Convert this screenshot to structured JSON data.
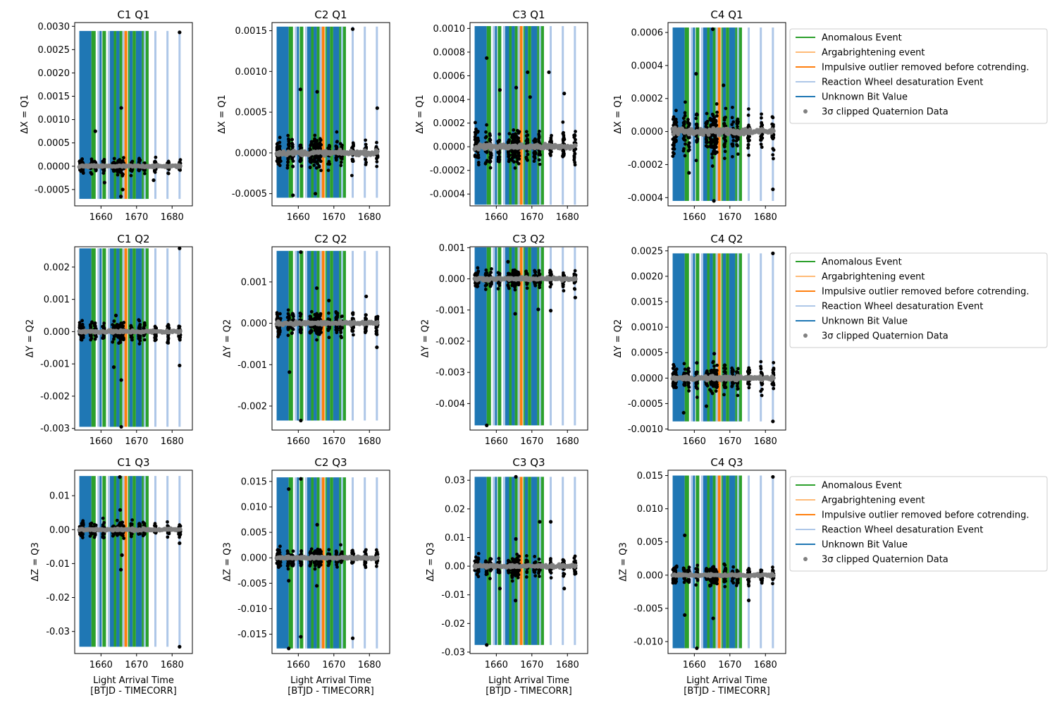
{
  "figure": {
    "xlabel_line1": "Light Arrival Time",
    "xlabel_line2": "[BTJD - TIMECORR]",
    "xticks": [
      1660,
      1670,
      1680
    ],
    "xlim": [
      1652.6,
      1685.7
    ],
    "time_span": [
      1653.9,
      1682.3
    ]
  },
  "legend": {
    "entries": [
      {
        "label": "Anomalous Event",
        "color": "#2ca02c",
        "kind": "line"
      },
      {
        "label": "Argabrightening event",
        "color": "#ffbb78",
        "kind": "line"
      },
      {
        "label": "Impulsive outlier removed before cotrending.",
        "color": "#ff7f0e",
        "kind": "line"
      },
      {
        "label": "Reaction Wheel desaturation Event",
        "color": "#aec7e8",
        "kind": "line"
      },
      {
        "label": "Unknown Bit Value",
        "color": "#1f77b4",
        "kind": "line"
      },
      {
        "label": "3σ clipped Quaternion Data",
        "color": "#808080",
        "kind": "marker"
      }
    ]
  },
  "events": {
    "unknown_bit_value": {
      "color": "#1f77b4",
      "spans": [
        [
          1653.9,
          1657.3
        ],
        [
          1659.6,
          1660.2
        ],
        [
          1662.5,
          1663.6
        ],
        [
          1664.3,
          1665.2
        ],
        [
          1668.0,
          1668.9
        ],
        [
          1669.8,
          1671.5
        ]
      ]
    },
    "anomalous_event": {
      "color": "#2ca02c",
      "spans": [
        [
          1657.3,
          1658.5
        ],
        [
          1660.4,
          1661.4
        ],
        [
          1663.6,
          1664.3
        ],
        [
          1665.2,
          1666.0
        ],
        [
          1667.6,
          1668.0
        ],
        [
          1668.9,
          1669.8
        ],
        [
          1671.5,
          1672.2
        ],
        [
          1672.4,
          1673.4
        ]
      ]
    },
    "reaction_wheel_desaturation": {
      "color": "#aec7e8",
      "times": [
        1659.3,
        1662.2,
        1666.3,
        1675.3,
        1678.7,
        1682.1
      ]
    },
    "reaction_wheel_desaturation_dark": {
      "color": "#9ecae1",
      "times": [
        1672.3
      ]
    },
    "impulsive_outlier": {
      "color": "#ff7f0e",
      "times": [
        1667.0
      ]
    }
  },
  "chart_data": [
    {
      "type": "scatter",
      "title": "C1 Q1",
      "ylabel": "ΔX = Q1",
      "ylim": [
        -0.00085,
        0.00308
      ],
      "yticks": [
        "-0.0005",
        "0.0000",
        "0.0005",
        "0.0010",
        "0.0015",
        "0.0020",
        "0.0025",
        "0.0030"
      ],
      "ytick_values": [
        -0.0005,
        0,
        0.0005,
        0.001,
        0.0015,
        0.002,
        0.0025,
        0.003
      ],
      "event_band": [
        -0.0007,
        0.0029
      ],
      "center": 0.0,
      "spread": 0.00018,
      "outliers": [
        {
          "x": 1658.4,
          "y": 0.00075
        },
        {
          "x": 1665.7,
          "y": 0.00125
        },
        {
          "x": 1665.6,
          "y": -0.00065
        },
        {
          "x": 1682.1,
          "y": 0.00287
        },
        {
          "x": 1666.1,
          "y": -0.0005
        },
        {
          "x": 1674.8,
          "y": -0.0003
        },
        {
          "x": 1661.0,
          "y": -0.00035
        }
      ]
    },
    {
      "type": "scatter",
      "title": "C2 Q1",
      "ylabel": "ΔX = Q1",
      "ylim": [
        -0.00065,
        0.0016
      ],
      "yticks": [
        "-0.0005",
        "0.0000",
        "0.0005",
        "0.0010",
        "0.0015"
      ],
      "ytick_values": [
        -0.0005,
        0,
        0.0005,
        0.001,
        0.0015
      ],
      "event_band": [
        -0.00055,
        0.00155
      ],
      "center": 0.0,
      "spread": 0.00022,
      "outliers": [
        {
          "x": 1660.6,
          "y": 0.00078
        },
        {
          "x": 1665.3,
          "y": 0.00075
        },
        {
          "x": 1675.3,
          "y": 0.00152
        },
        {
          "x": 1658.5,
          "y": -0.00052
        },
        {
          "x": 1682.2,
          "y": 0.00055
        },
        {
          "x": 1664.8,
          "y": -0.0005
        }
      ]
    },
    {
      "type": "scatter",
      "title": "C3 Q1",
      "ylabel": "ΔX = Q1",
      "ylim": [
        -0.0005,
        0.00105
      ],
      "yticks": [
        "-0.0004",
        "-0.0002",
        "0.0000",
        "0.0002",
        "0.0004",
        "0.0006",
        "0.0008",
        "0.0010"
      ],
      "ytick_values": [
        -0.0004,
        -0.0002,
        0,
        0.0002,
        0.0004,
        0.0006,
        0.0008,
        0.001
      ],
      "event_band": [
        -0.00049,
        0.00102
      ],
      "center": 0.0,
      "spread": 0.00018,
      "outliers": [
        {
          "x": 1657.3,
          "y": 0.00075
        },
        {
          "x": 1665.6,
          "y": 0.0005
        },
        {
          "x": 1668.8,
          "y": 0.00063
        },
        {
          "x": 1669.5,
          "y": 0.00042
        },
        {
          "x": 1674.8,
          "y": 0.00063
        },
        {
          "x": 1679.1,
          "y": 0.00045
        },
        {
          "x": 1661.0,
          "y": 0.00048
        }
      ]
    },
    {
      "type": "scatter",
      "title": "C4 Q1",
      "ylabel": "ΔX = Q1",
      "ylim": [
        -0.00045,
        0.00066
      ],
      "yticks": [
        "-0.0004",
        "-0.0002",
        "0.0000",
        "0.0002",
        "0.0004",
        "0.0006"
      ],
      "ytick_values": [
        -0.0004,
        -0.0002,
        0,
        0.0002,
        0.0004,
        0.0006
      ],
      "event_band": [
        -0.00042,
        0.00063
      ],
      "center": 0.0,
      "spread": 0.00017,
      "outliers": [
        {
          "x": 1665.2,
          "y": 0.00062
        },
        {
          "x": 1665.5,
          "y": -0.00042
        },
        {
          "x": 1660.5,
          "y": 0.00035
        },
        {
          "x": 1658.5,
          "y": -0.00025
        },
        {
          "x": 1668.2,
          "y": 0.00028
        },
        {
          "x": 1682.1,
          "y": -0.00035
        }
      ]
    },
    {
      "type": "scatter",
      "title": "C1 Q2",
      "ylabel": "ΔY = Q2",
      "ylim": [
        -0.00305,
        0.00263
      ],
      "yticks": [
        "-0.003",
        "-0.002",
        "-0.001",
        "0.000",
        "0.001",
        "0.002"
      ],
      "ytick_values": [
        -0.003,
        -0.002,
        -0.001,
        0,
        0.001,
        0.002
      ],
      "event_band": [
        -0.00295,
        0.00258
      ],
      "center": 0.0,
      "spread": 0.00035,
      "outliers": [
        {
          "x": 1682.1,
          "y": 0.00258
        },
        {
          "x": 1665.7,
          "y": -0.0015
        },
        {
          "x": 1665.7,
          "y": -0.00295
        },
        {
          "x": 1682.1,
          "y": -0.00105
        },
        {
          "x": 1663.6,
          "y": -0.0011
        },
        {
          "x": 1664.2,
          "y": 0.0005
        }
      ]
    },
    {
      "type": "scatter",
      "title": "C2 Q2",
      "ylabel": "ΔY = Q2",
      "ylim": [
        -0.00258,
        0.00185
      ],
      "yticks": [
        "-0.002",
        "-0.001",
        "0.000",
        "0.001"
      ],
      "ytick_values": [
        -0.002,
        -0.001,
        0,
        0.001
      ],
      "event_band": [
        -0.00235,
        0.00175
      ],
      "center": 0.0,
      "spread": 0.00035,
      "outliers": [
        {
          "x": 1660.7,
          "y": 0.00172
        },
        {
          "x": 1665.2,
          "y": 0.00085
        },
        {
          "x": 1660.7,
          "y": -0.00235
        },
        {
          "x": 1657.5,
          "y": -0.00118
        },
        {
          "x": 1668.6,
          "y": 0.00055
        },
        {
          "x": 1679.1,
          "y": 0.00065
        },
        {
          "x": 1682.1,
          "y": -0.00058
        }
      ]
    },
    {
      "type": "scatter",
      "title": "C3 Q2",
      "ylabel": "ΔY = Q2",
      "ylim": [
        -0.00485,
        0.00103
      ],
      "yticks": [
        "-0.004",
        "-0.003",
        "-0.002",
        "-0.001",
        "0.000",
        "0.001"
      ],
      "ytick_values": [
        -0.004,
        -0.003,
        -0.002,
        -0.001,
        0,
        0.001
      ],
      "event_band": [
        -0.0047,
        0.00101
      ],
      "center": 0.0,
      "spread": 0.00035,
      "outliers": [
        {
          "x": 1657.3,
          "y": -0.0047
        },
        {
          "x": 1665.3,
          "y": -0.00112
        },
        {
          "x": 1671.8,
          "y": -0.00098
        },
        {
          "x": 1675.3,
          "y": -0.00102
        },
        {
          "x": 1682.2,
          "y": -0.0006
        },
        {
          "x": 1663.3,
          "y": 0.00055
        }
      ]
    },
    {
      "type": "scatter",
      "title": "C4 Q2",
      "ylabel": "ΔY = Q2",
      "ylim": [
        -0.00102,
        0.00258
      ],
      "yticks": [
        "-0.0010",
        "-0.0005",
        "0.0000",
        "0.0005",
        "0.0010",
        "0.0015",
        "0.0020",
        "0.0025"
      ],
      "ytick_values": [
        -0.001,
        -0.0005,
        0,
        0.0005,
        0.001,
        0.0015,
        0.002,
        0.0025
      ],
      "event_band": [
        -0.00085,
        0.00245
      ],
      "center": 0.0,
      "spread": 0.00032,
      "outliers": [
        {
          "x": 1682.1,
          "y": 0.00245
        },
        {
          "x": 1657.0,
          "y": -0.00068
        },
        {
          "x": 1682.1,
          "y": -0.00085
        },
        {
          "x": 1665.6,
          "y": 0.00048
        },
        {
          "x": 1660.7,
          "y": 0.0003
        },
        {
          "x": 1663.4,
          "y": -0.00055
        }
      ]
    },
    {
      "type": "scatter",
      "title": "C1 Q3",
      "ylabel": "ΔZ = Q3",
      "ylim": [
        -0.0365,
        0.0175
      ],
      "yticks": [
        "-0.03",
        "-0.02",
        "-0.01",
        "0.00",
        "0.01"
      ],
      "ytick_values": [
        -0.03,
        -0.02,
        -0.01,
        0,
        0.01
      ],
      "event_band": [
        -0.0345,
        0.0158
      ],
      "center": 0.0,
      "spread": 0.0028,
      "outliers": [
        {
          "x": 1682.1,
          "y": -0.0345
        },
        {
          "x": 1665.3,
          "y": 0.0155
        },
        {
          "x": 1665.6,
          "y": -0.0118
        },
        {
          "x": 1665.4,
          "y": 0.0058
        },
        {
          "x": 1682.1,
          "y": -0.004
        },
        {
          "x": 1665.9,
          "y": -0.0075
        }
      ]
    },
    {
      "type": "scatter",
      "title": "C2 Q3",
      "ylabel": "ΔZ = Q3",
      "ylim": [
        -0.0188,
        0.0172
      ],
      "yticks": [
        "-0.015",
        "-0.010",
        "-0.005",
        "0.000",
        "0.005",
        "0.010",
        "0.015"
      ],
      "ytick_values": [
        -0.015,
        -0.01,
        -0.005,
        0,
        0.005,
        0.01,
        0.015
      ],
      "event_band": [
        -0.0178,
        0.0158
      ],
      "center": 0.0,
      "spread": 0.0022,
      "outliers": [
        {
          "x": 1657.3,
          "y": 0.0135
        },
        {
          "x": 1660.7,
          "y": 0.0155
        },
        {
          "x": 1660.7,
          "y": -0.0155
        },
        {
          "x": 1657.3,
          "y": -0.0178
        },
        {
          "x": 1675.3,
          "y": -0.0158
        },
        {
          "x": 1657.3,
          "y": -0.0045
        },
        {
          "x": 1665.3,
          "y": 0.0065
        },
        {
          "x": 1665.2,
          "y": -0.0055
        }
      ]
    },
    {
      "type": "scatter",
      "title": "C3 Q3",
      "ylabel": "ΔZ = Q3",
      "ylim": [
        -0.0305,
        0.0335
      ],
      "yticks": [
        "-0.03",
        "-0.02",
        "-0.01",
        "0.00",
        "0.01",
        "0.02",
        "0.03"
      ],
      "ytick_values": [
        -0.03,
        -0.02,
        -0.01,
        0,
        0.01,
        0.02,
        0.03
      ],
      "event_band": [
        -0.0275,
        0.0312
      ],
      "center": 0.0,
      "spread": 0.0042,
      "outliers": [
        {
          "x": 1657.3,
          "y": -0.0275
        },
        {
          "x": 1665.5,
          "y": 0.0312
        },
        {
          "x": 1672.2,
          "y": 0.0155
        },
        {
          "x": 1675.3,
          "y": 0.0155
        },
        {
          "x": 1665.5,
          "y": 0.0095
        },
        {
          "x": 1679.1,
          "y": -0.0078
        },
        {
          "x": 1661.0,
          "y": -0.0078
        },
        {
          "x": 1665.4,
          "y": -0.012
        }
      ]
    },
    {
      "type": "scatter",
      "title": "C4 Q3",
      "ylabel": "ΔZ = Q3",
      "ylim": [
        -0.0118,
        0.0158
      ],
      "yticks": [
        "-0.010",
        "-0.005",
        "0.000",
        "0.005",
        "0.010",
        "0.015"
      ],
      "ytick_values": [
        -0.01,
        -0.005,
        0,
        0.005,
        0.01,
        0.015
      ],
      "event_band": [
        -0.011,
        0.015
      ],
      "center": 0.0,
      "spread": 0.0016,
      "outliers": [
        {
          "x": 1682.1,
          "y": 0.0148
        },
        {
          "x": 1660.7,
          "y": -0.011
        },
        {
          "x": 1657.3,
          "y": 0.006
        },
        {
          "x": 1665.3,
          "y": -0.0065
        },
        {
          "x": 1657.3,
          "y": -0.006
        },
        {
          "x": 1675.3,
          "y": -0.0038
        }
      ]
    }
  ]
}
